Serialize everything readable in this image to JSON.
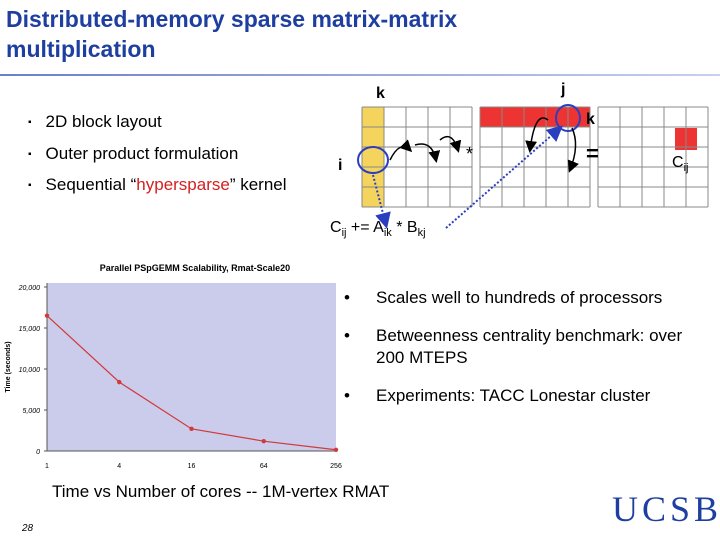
{
  "header": {
    "title": "Distributed-memory sparse matrix-matrix multiplication"
  },
  "left_bullets": [
    {
      "parts": [
        "2D block layout"
      ]
    },
    {
      "parts": [
        "Outer product formulation"
      ]
    },
    {
      "parts": [
        "Sequential “",
        "hypersparse",
        "” kernel"
      ]
    }
  ],
  "diagram": {
    "label_k_top": "k",
    "label_j": "j",
    "label_k_right": "k",
    "label_i": "i",
    "times": "*",
    "equals": "=",
    "c_label": {
      "base": "C",
      "sub": "ij"
    },
    "formula": [
      {
        "base": "C",
        "sub": "ij"
      },
      {
        "base": " += A",
        "sub": "ik"
      },
      {
        "base": " * B",
        "sub": "kj"
      }
    ]
  },
  "chart_data": {
    "type": "line",
    "title": "Parallel PSpGEMM Scalability, Rmat-Scale20",
    "y_label": "Time (seconds)",
    "categories": [
      "1",
      "4",
      "16",
      "64",
      "256"
    ],
    "values": [
      16500,
      8400,
      2700,
      1200,
      150
    ],
    "color": "#d03a3a",
    "ylim": [
      0,
      20000
    ],
    "yticks": [
      0,
      {
        "value": 5000,
        "label": "5,000"
      },
      {
        "value": 10000,
        "label": "10,000"
      },
      {
        "value": 15000,
        "label": "15,000"
      },
      {
        "value": 20000,
        "label": "20,000"
      }
    ],
    "background": "#cbcbeb"
  },
  "right_bullets": [
    "Scales well to hundreds of processors",
    "Betweenness centrality benchmark: over 200 MTEPS",
    "Experiments: TACC Lonestar cluster"
  ],
  "caption": "Time vs Number of cores -- 1M-vertex RMAT",
  "page_number": "28",
  "logo": "UCSB"
}
